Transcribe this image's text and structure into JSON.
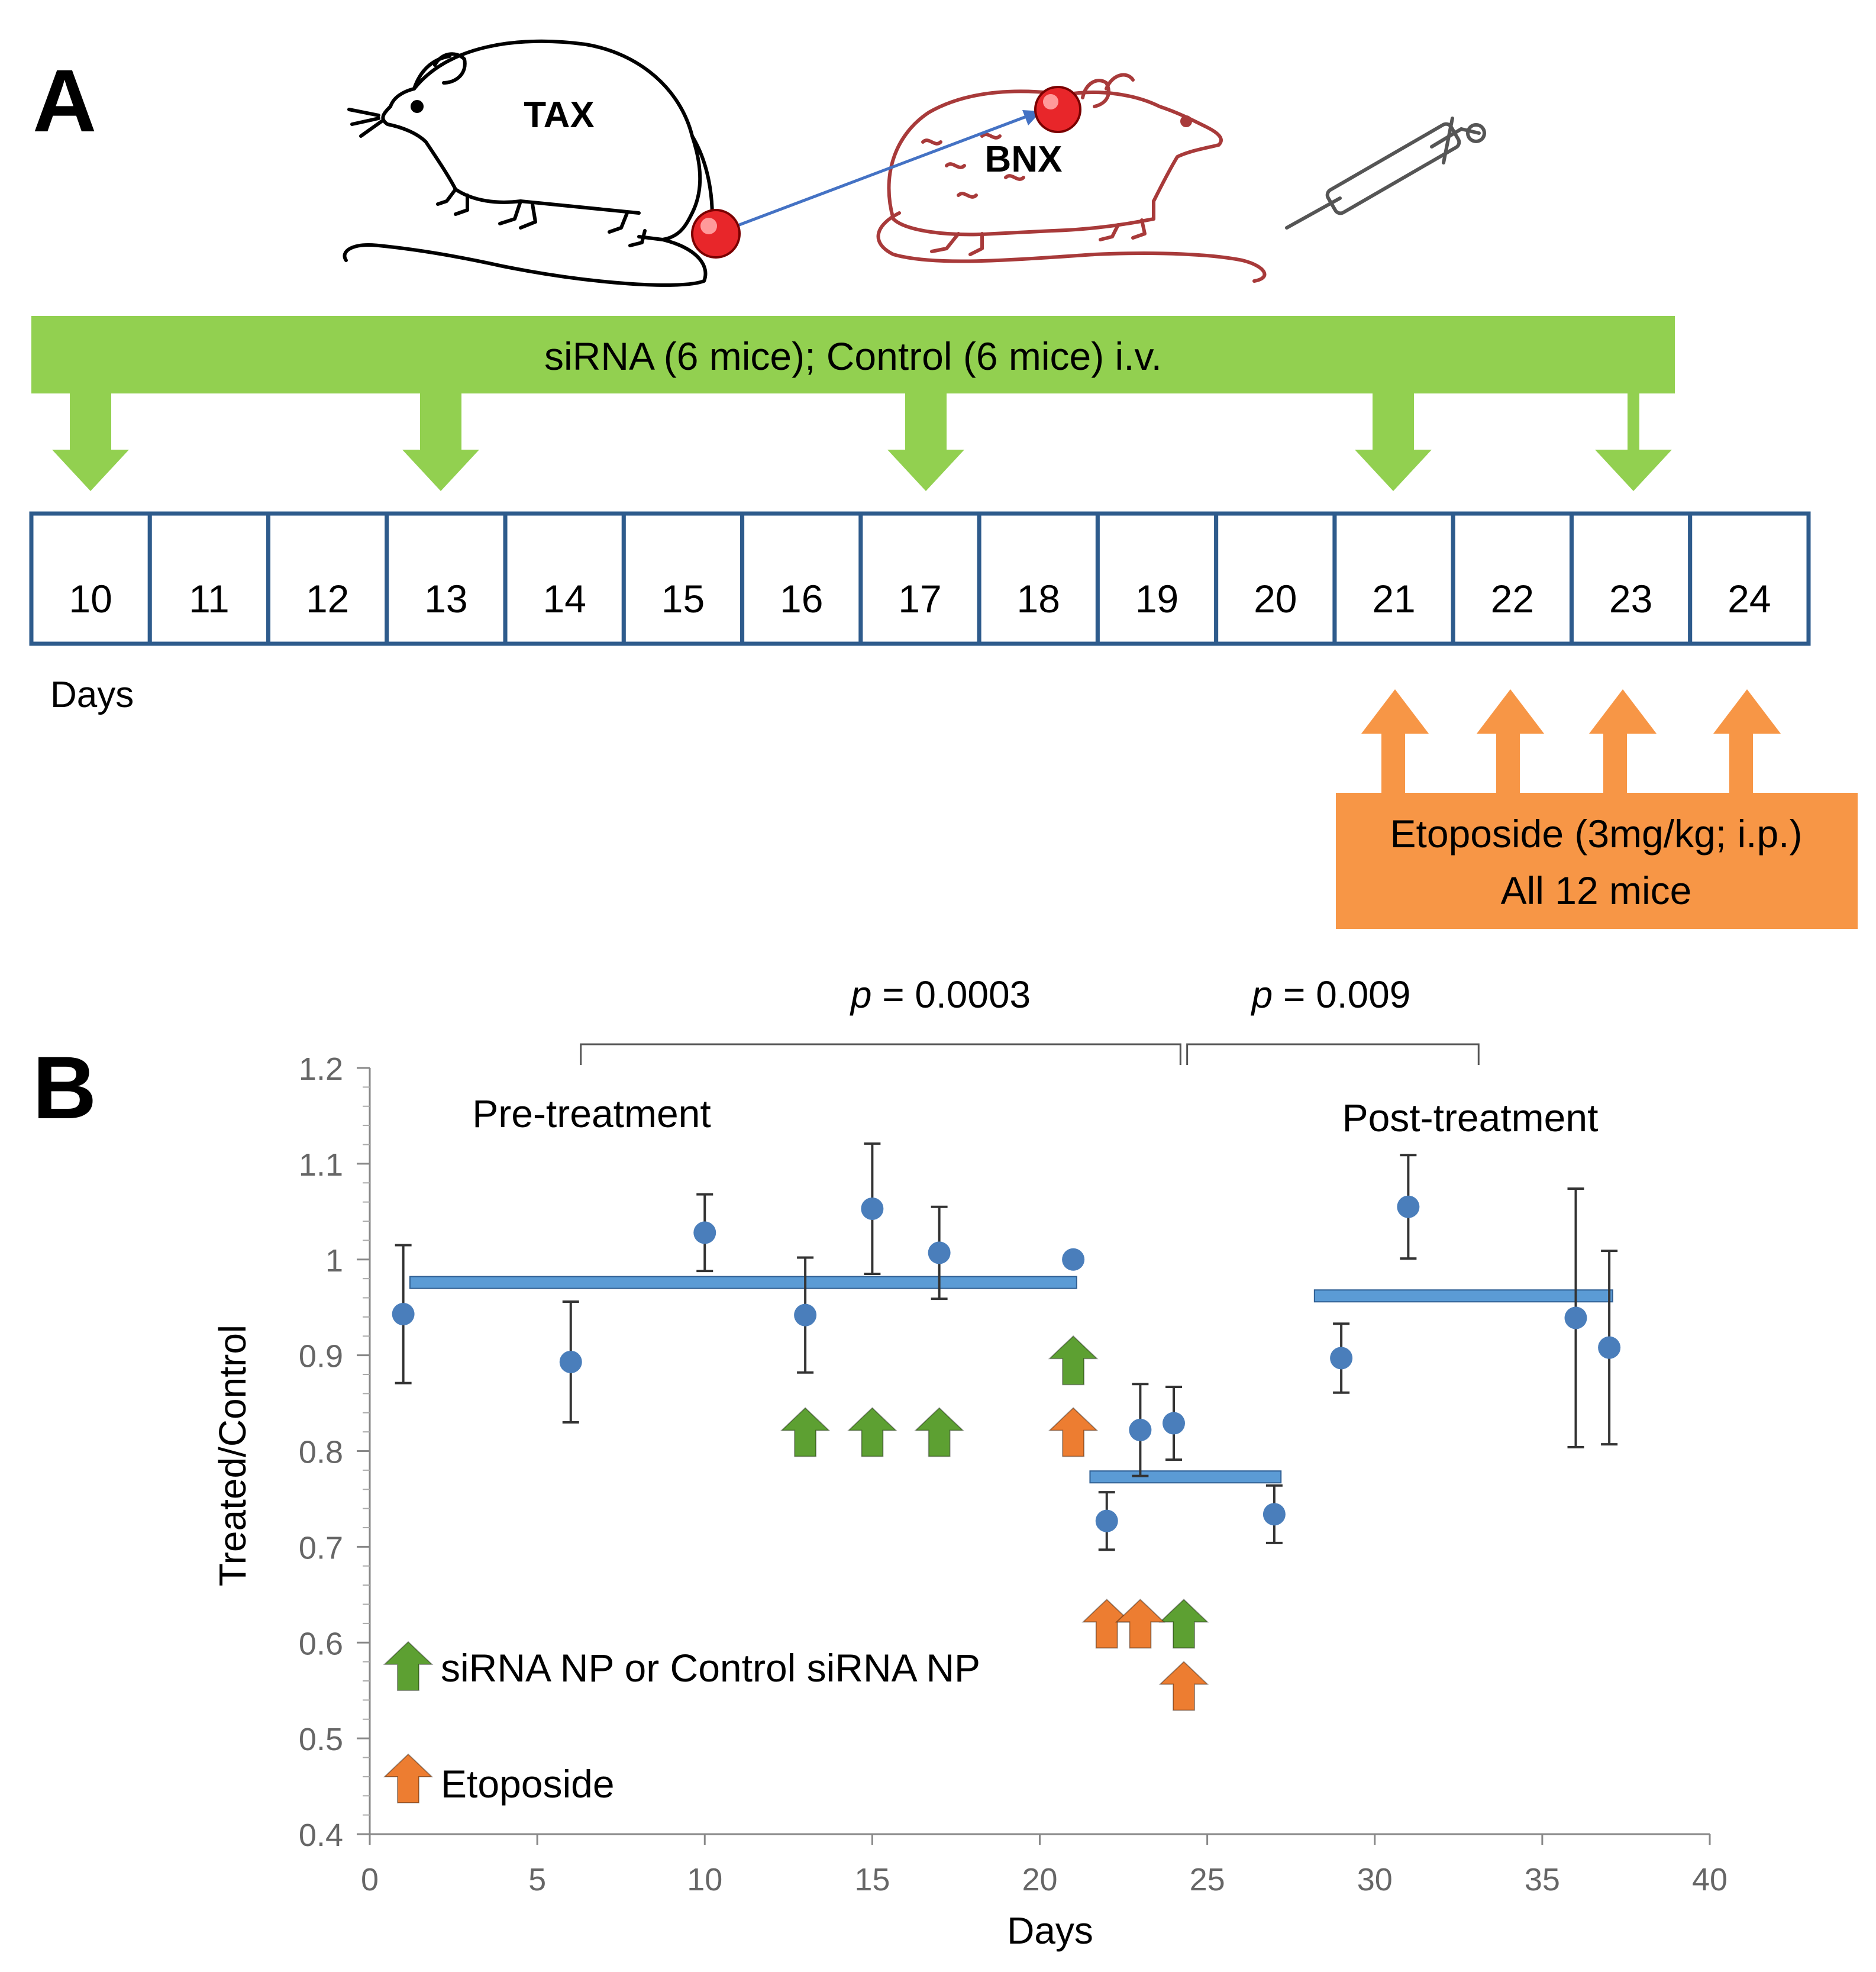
{
  "panel_a": {
    "label": "A",
    "mouse_left_label": "TAX",
    "mouse_right_label": "BNX",
    "sirna_banner_text": "siRNA (6 mice); Control (6 mice) i.v.",
    "days": [
      "10",
      "11",
      "12",
      "13",
      "14",
      "15",
      "16",
      "17",
      "18",
      "19",
      "20",
      "21",
      "22",
      "23",
      "24"
    ],
    "sirna_days": [
      10,
      13,
      17,
      21,
      23
    ],
    "etoposide_days": [
      21,
      22,
      23,
      24
    ],
    "days_label": "Days",
    "etoposide_line1": "Etoposide (3mg/kg; i.p.)",
    "etoposide_line2": "All 12 mice",
    "colors": {
      "green": "#92d050",
      "orange": "#f79646",
      "box_border": "#2e5b8c"
    }
  },
  "panel_b": {
    "label": "B",
    "pre_label": "Pre-treatment",
    "post_label": "Post-treatment",
    "p_pre_italic": "p",
    "p_pre_rest": " = 0.0003",
    "p_post_italic": "p",
    "p_post_rest": " = 0.009",
    "legend_sirna": "siRNA NP or Control siRNA NP",
    "legend_etoposide": "Etoposide",
    "colors": {
      "point": "#4a7ebb",
      "mean_line": "#5b9bd5",
      "mean_line_edge": "#2f5f93",
      "green_arrow": "#5da032",
      "orange_arrow": "#ed7d31",
      "error_bar": "#333333"
    }
  },
  "chart_data": {
    "type": "scatter",
    "title": "",
    "xlabel": "Days",
    "ylabel": "Treated/Control",
    "xlim": [
      0,
      40
    ],
    "ylim": [
      0.4,
      1.2
    ],
    "x_ticks": [
      "0",
      "5",
      "10",
      "15",
      "20",
      "25",
      "30",
      "35",
      "40"
    ],
    "y_ticks": [
      "0.4",
      "0.5",
      "0.6",
      "0.7",
      "0.8",
      "0.9",
      "1",
      "1.1",
      "1.2"
    ],
    "points": [
      {
        "x": 1,
        "y": 0.943,
        "err": 0.072
      },
      {
        "x": 6,
        "y": 0.893,
        "err": 0.063
      },
      {
        "x": 10,
        "y": 1.028,
        "err": 0.04
      },
      {
        "x": 13,
        "y": 0.942,
        "err": 0.06
      },
      {
        "x": 15,
        "y": 1.053,
        "err": 0.068
      },
      {
        "x": 17,
        "y": 1.007,
        "err": 0.048
      },
      {
        "x": 21,
        "y": 1.0,
        "err": 0
      },
      {
        "x": 22,
        "y": 0.727,
        "err": 0.03
      },
      {
        "x": 23,
        "y": 0.822,
        "err": 0.048
      },
      {
        "x": 24,
        "y": 0.829,
        "err": 0.038
      },
      {
        "x": 27,
        "y": 0.734,
        "err": 0.03
      },
      {
        "x": 29,
        "y": 0.897,
        "err": 0.036
      },
      {
        "x": 31,
        "y": 1.055,
        "err": 0.054
      },
      {
        "x": 36,
        "y": 0.939,
        "err": 0.135
      },
      {
        "x": 37,
        "y": 0.908,
        "err": 0.101
      }
    ],
    "mean_lines": [
      {
        "name": "Pre-treatment mean",
        "x_start": 1.2,
        "x_end": 21.1,
        "y": 0.976
      },
      {
        "name": "Treatment mean",
        "x_start": 21.5,
        "x_end": 27.2,
        "y": 0.773
      },
      {
        "name": "Post-treatment mean",
        "x_start": 28.2,
        "x_end": 37.1,
        "y": 0.962
      }
    ],
    "sirna_arrows": [
      {
        "x": 13,
        "y": 0.845
      },
      {
        "x": 15,
        "y": 0.845
      },
      {
        "x": 17,
        "y": 0.845
      },
      {
        "x": 21,
        "y": 0.92
      },
      {
        "x": 24.3,
        "y": 0.645
      }
    ],
    "etoposide_arrows": [
      {
        "x": 21,
        "y": 0.845
      },
      {
        "x": 22,
        "y": 0.645
      },
      {
        "x": 23,
        "y": 0.645
      },
      {
        "x": 24.3,
        "y": 0.58
      }
    ],
    "brackets": [
      {
        "x_start": 6.3,
        "x_end": 24.2,
        "label": "p = 0.0003"
      },
      {
        "x_start": 24.4,
        "x_end": 33.1,
        "label": "p = 0.009"
      }
    ]
  }
}
